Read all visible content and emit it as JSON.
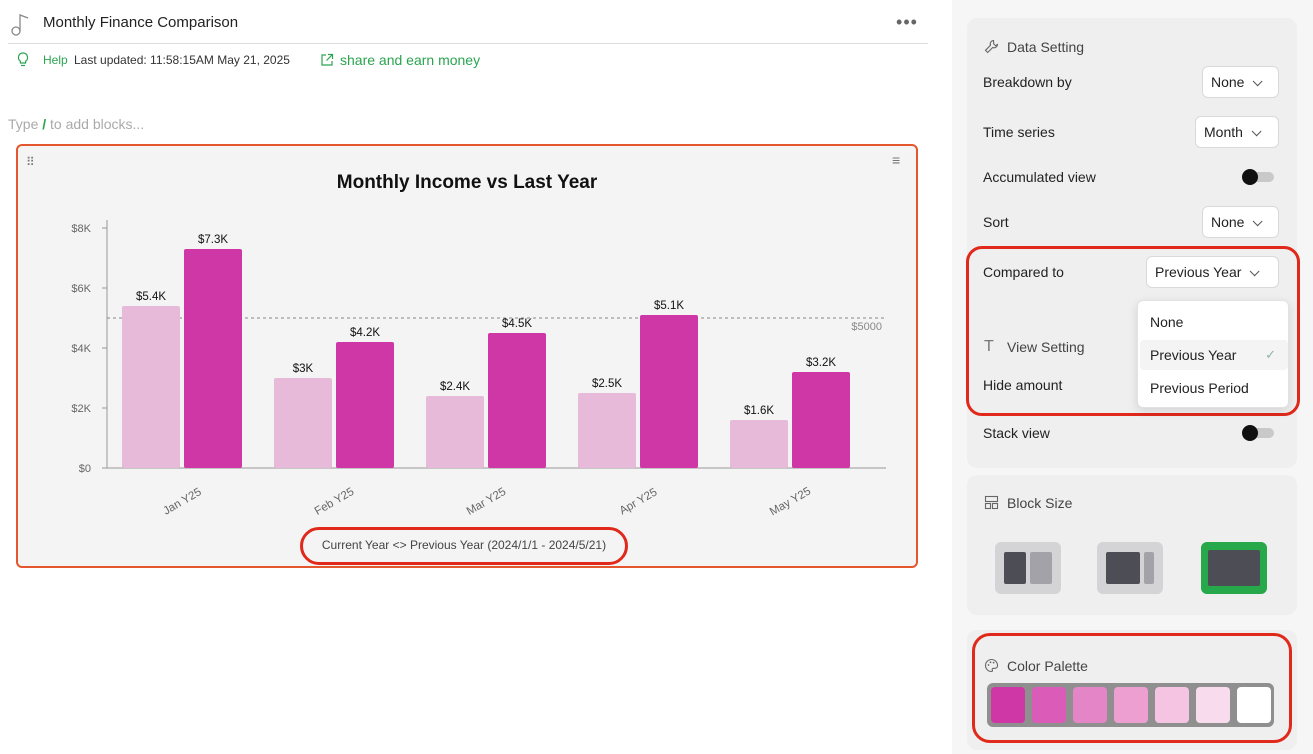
{
  "header": {
    "title": "Monthly Finance Comparison",
    "more_label": "•••",
    "help_label": "Help",
    "last_updated": "Last updated: 11:58:15AM May 21, 2025",
    "share_label": "share and earn money"
  },
  "editor": {
    "placeholder_pre": "Type",
    "placeholder_slash": "/",
    "placeholder_post": "to add blocks..."
  },
  "chart_block": {
    "drag_handle": "⠿",
    "menu_icon": "≡"
  },
  "chart_data": {
    "type": "bar",
    "title": "Monthly Income vs Last Year",
    "subtitle": "Current Year <> Previous Year (2024/1/1 - 2024/5/21)",
    "categories": [
      "Jan Y25",
      "Feb Y25",
      "Mar Y25",
      "Apr Y25",
      "May Y25"
    ],
    "series": [
      {
        "values": [
          5400,
          3000,
          2400,
          2500,
          1600
        ],
        "labels": [
          "$5.4K",
          "$3K",
          "$2.4K",
          "$2.5K",
          "$1.6K"
        ],
        "color": "#e8bada"
      },
      {
        "values": [
          7300,
          4200,
          4500,
          5100,
          3200
        ],
        "labels": [
          "$7.3K",
          "$4.2K",
          "$4.5K",
          "$5.1K",
          "$3.2K"
        ],
        "color": "#cf36a6"
      }
    ],
    "ylim": [
      0,
      8000
    ],
    "yticks": [
      0,
      2000,
      4000,
      6000,
      8000
    ],
    "ytick_labels": [
      "$0",
      "$2K",
      "$4K",
      "$6K",
      "$8K"
    ],
    "reference_line": {
      "value": 5000,
      "label": "$5000"
    },
    "grid": false,
    "legend": "none"
  },
  "sidebar": {
    "data_setting": {
      "title": "Data Setting",
      "breakdown_label": "Breakdown by",
      "breakdown_value": "None",
      "time_series_label": "Time series",
      "time_series_value": "Month",
      "accumulated_label": "Accumulated view",
      "accumulated_on": false,
      "sort_label": "Sort",
      "sort_value": "None",
      "compared_label": "Compared to",
      "compared_value": "Previous Year",
      "compared_options": [
        "None",
        "Previous Year",
        "Previous Period"
      ],
      "compared_selected": "Previous Year"
    },
    "view_setting": {
      "title": "View Setting",
      "hide_amount_label": "Hide amount",
      "stack_view_label": "Stack view",
      "stack_view_on": false
    },
    "block_size": {
      "title": "Block Size",
      "selected": "full"
    },
    "color_palette": {
      "title": "Color Palette",
      "colors": [
        "#cf36a6",
        "#db5cb8",
        "#e485c7",
        "#ed9fd2",
        "#f5c4e3",
        "#f8dcee",
        "#ffffff"
      ]
    }
  }
}
